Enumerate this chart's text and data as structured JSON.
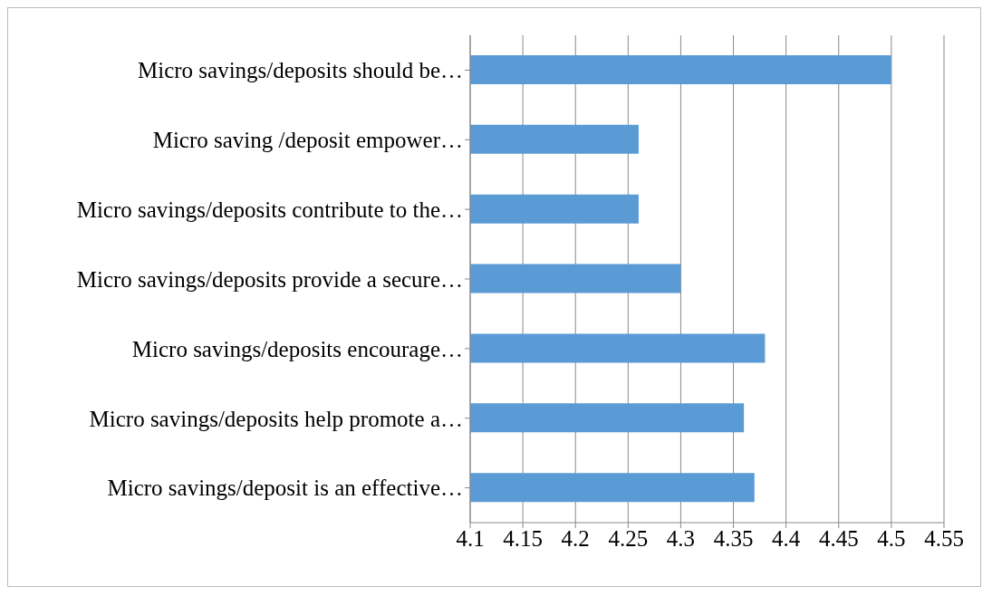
{
  "chart_data": {
    "type": "bar",
    "orientation": "horizontal",
    "categories": [
      "Micro savings/deposits should be…",
      "Micro saving /deposit empower…",
      "Micro savings/deposits contribute to the…",
      "Micro savings/deposits provide a secure…",
      "Micro savings/deposits encourage…",
      "Micro savings/deposits help promote a…",
      "Micro savings/deposit is an effective…"
    ],
    "values": [
      4.5,
      4.26,
      4.26,
      4.3,
      4.38,
      4.36,
      4.37
    ],
    "color": "#5b9bd5",
    "xlim": [
      4.1,
      4.55
    ],
    "xticks": [
      4.1,
      4.15,
      4.2,
      4.25,
      4.3,
      4.35,
      4.4,
      4.45,
      4.5,
      4.55
    ],
    "grid": "x"
  }
}
